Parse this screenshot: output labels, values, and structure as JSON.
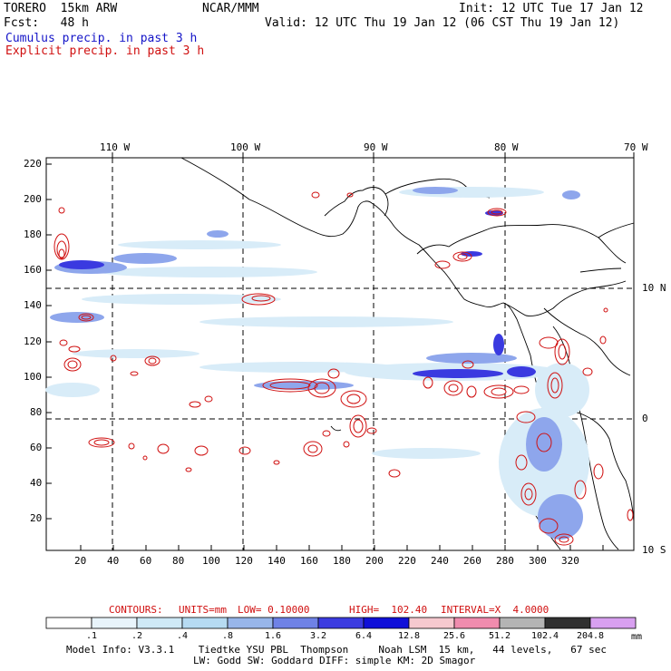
{
  "header": {
    "model": "TORERO  15km ARW",
    "org": "NCAR/MMM",
    "init": "Init: 12 UTC Tue 17 Jan 12",
    "fcst": "Fcst:   48 h",
    "valid": "Valid: 12 UTC Thu 19 Jan 12 (06 CST Thu 19 Jan 12)",
    "field1": "Cumulus precip. in past 3 h",
    "field2": "Explicit precip. in past 3 h"
  },
  "colors": {
    "cumulus": "#1515c8",
    "explicit": "#d01010",
    "grid": "#000000",
    "coast": "#000000"
  },
  "map": {
    "lon_labels": [
      "110 W",
      "100 W",
      "90 W",
      "80 W",
      "70 W"
    ],
    "lat_labels": [
      "10 N",
      "0",
      "10 S"
    ],
    "y_ticks": [
      "220",
      "200",
      "180",
      "160",
      "140",
      "120",
      "100",
      "80",
      "60",
      "40",
      "20"
    ],
    "x_ticks": [
      "20",
      "40",
      "60",
      "80",
      "100",
      "120",
      "140",
      "160",
      "180",
      "200",
      "220",
      "240",
      "260",
      "280",
      "300",
      "320"
    ]
  },
  "footer": {
    "contours_label": "CONTOURS:",
    "units": "UNITS=mm",
    "low": "LOW= 0.10000",
    "high": "HIGH=  102.40",
    "interval": "INTERVAL=X  4.0000",
    "unit": "mm",
    "scale_labels": [
      ".1",
      ".2",
      ".4",
      ".8",
      "1.6",
      "3.2",
      "6.4",
      "12.8",
      "25.6",
      "51.2",
      "102.4",
      "204.8"
    ],
    "scale_colors": [
      "#ffffff",
      "#e8f4fb",
      "#cfe9f6",
      "#b6dbf2",
      "#98b6ea",
      "#6f82e6",
      "#3c3ce0",
      "#1010d8",
      "#f6c9cf",
      "#f08cae",
      "#b4b4b4",
      "#303030",
      "#d8a0f0"
    ],
    "model_info_line1": "Model Info: V3.3.1    Tiedtke YSU PBL  Thompson     Noah LSM  15 km,   44 levels,   67 sec",
    "model_info_line2": "LW: Godd SW: Goddard DIFF: simple KM: 2D Smagor"
  }
}
